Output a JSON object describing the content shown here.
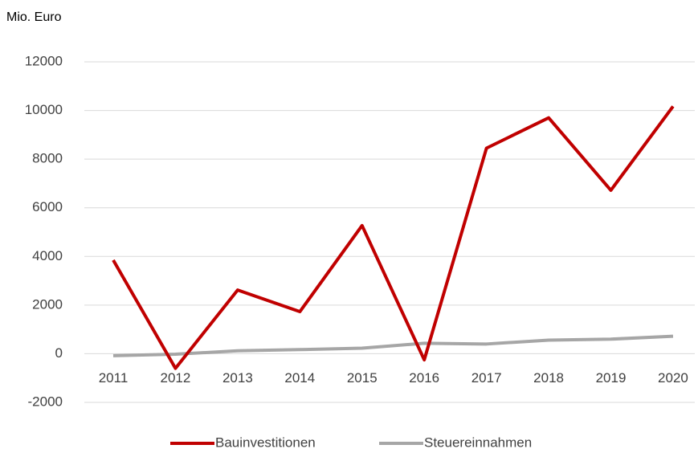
{
  "chart_data": {
    "type": "line",
    "y_axis_label": "Mio. Euro",
    "categories": [
      "2011",
      "2012",
      "2013",
      "2014",
      "2015",
      "2016",
      "2017",
      "2018",
      "2019",
      "2020"
    ],
    "series": [
      {
        "name": "Bauinvestitionen",
        "color": "#c00000",
        "values": [
          3850,
          -600,
          2620,
          1730,
          5270,
          -250,
          8450,
          9700,
          6720,
          10170
        ]
      },
      {
        "name": "Steuereinnahmen",
        "color": "#a6a6a6",
        "values": [
          -80,
          -20,
          120,
          170,
          230,
          430,
          400,
          560,
          600,
          720
        ]
      }
    ],
    "ylim": [
      -2000,
      12000
    ],
    "yticks": [
      -2000,
      0,
      2000,
      4000,
      6000,
      8000,
      10000,
      12000
    ],
    "grid": true,
    "legend": "bottom"
  }
}
